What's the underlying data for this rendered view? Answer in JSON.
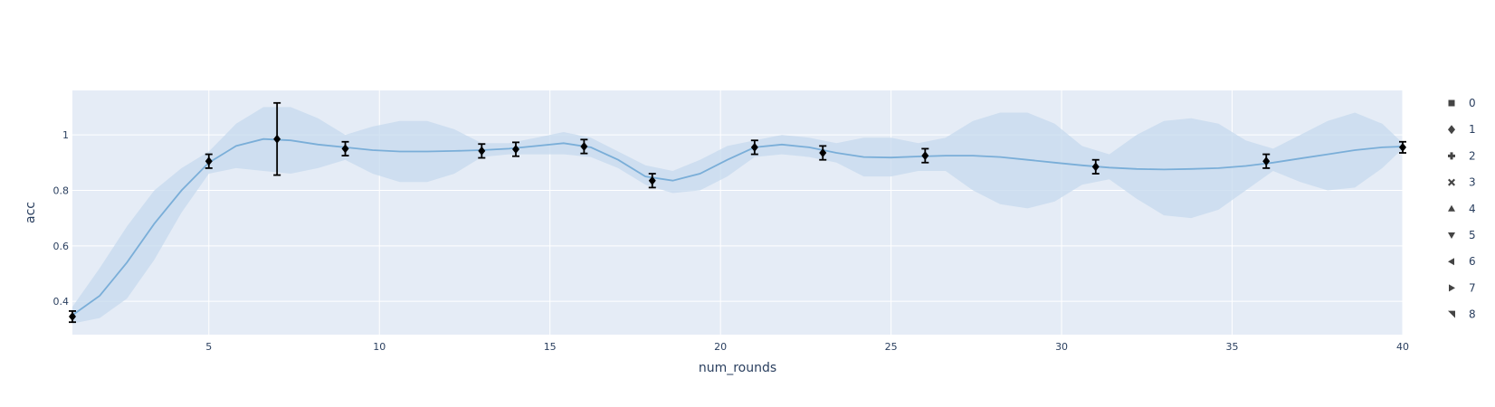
{
  "chart_data": {
    "type": "line",
    "xlabel": "num_rounds",
    "ylabel": "acc",
    "xlim": [
      1,
      40
    ],
    "ylim": [
      0.28,
      1.16
    ],
    "x_ticks": [
      5,
      10,
      15,
      20,
      25,
      30,
      35,
      40
    ],
    "y_ticks": [
      0.4,
      0.6,
      0.8,
      1
    ],
    "grid": true,
    "legend_placement": "right",
    "colors": {
      "plot_bg": "#e5ecf6",
      "grid": "#ffffff",
      "line": "#7aaed8",
      "band": "#c5d9ee",
      "points": "#000000",
      "legend_marker": "#444444",
      "text": "#2a3f5f"
    },
    "fit_line": {
      "x": [
        1,
        1.8,
        2.6,
        3.4,
        4.2,
        5,
        5.8,
        6.6,
        7.4,
        8.2,
        9,
        9.8,
        10.6,
        11.4,
        12.2,
        13,
        13.8,
        14.6,
        15.4,
        16.2,
        17,
        17.8,
        18.6,
        19.4,
        20.2,
        21,
        21.8,
        22.6,
        23.4,
        24.2,
        25,
        25.8,
        26.6,
        27.4,
        28.2,
        29,
        29.8,
        30.6,
        31.4,
        32.2,
        33,
        33.8,
        34.6,
        35.4,
        36.2,
        37,
        37.8,
        38.6,
        39.4,
        40
      ],
      "y": [
        0.35,
        0.42,
        0.54,
        0.68,
        0.8,
        0.9,
        0.96,
        0.985,
        0.98,
        0.965,
        0.955,
        0.945,
        0.94,
        0.94,
        0.942,
        0.945,
        0.95,
        0.96,
        0.97,
        0.955,
        0.91,
        0.85,
        0.835,
        0.86,
        0.91,
        0.955,
        0.965,
        0.955,
        0.935,
        0.92,
        0.918,
        0.922,
        0.925,
        0.925,
        0.92,
        0.91,
        0.9,
        0.89,
        0.882,
        0.877,
        0.875,
        0.877,
        0.88,
        0.888,
        0.9,
        0.915,
        0.93,
        0.945,
        0.955,
        0.958
      ]
    },
    "band": {
      "upper": [
        0.38,
        0.52,
        0.67,
        0.8,
        0.88,
        0.94,
        1.04,
        1.1,
        1.1,
        1.06,
        1.0,
        1.03,
        1.05,
        1.05,
        1.02,
        0.97,
        0.97,
        0.99,
        1.01,
        0.99,
        0.94,
        0.89,
        0.87,
        0.91,
        0.96,
        0.98,
        1.0,
        0.99,
        0.97,
        0.99,
        0.99,
        0.97,
        0.99,
        1.05,
        1.08,
        1.08,
        1.04,
        0.96,
        0.93,
        1.0,
        1.05,
        1.06,
        1.04,
        0.98,
        0.95,
        1.0,
        1.05,
        1.08,
        1.04,
        0.97
      ],
      "lower": [
        0.32,
        0.34,
        0.41,
        0.55,
        0.72,
        0.86,
        0.88,
        0.87,
        0.86,
        0.88,
        0.91,
        0.86,
        0.83,
        0.83,
        0.86,
        0.92,
        0.93,
        0.93,
        0.93,
        0.92,
        0.88,
        0.82,
        0.79,
        0.8,
        0.85,
        0.92,
        0.93,
        0.92,
        0.9,
        0.85,
        0.85,
        0.87,
        0.87,
        0.8,
        0.75,
        0.735,
        0.76,
        0.82,
        0.84,
        0.77,
        0.71,
        0.7,
        0.73,
        0.8,
        0.87,
        0.83,
        0.8,
        0.81,
        0.88,
        0.95
      ]
    },
    "observations": [
      {
        "x": 1,
        "y": 0.345,
        "err": 0.02
      },
      {
        "x": 5,
        "y": 0.905,
        "err": 0.025
      },
      {
        "x": 7,
        "y": 0.985,
        "err": 0.13
      },
      {
        "x": 9,
        "y": 0.95,
        "err": 0.025
      },
      {
        "x": 13,
        "y": 0.942,
        "err": 0.025
      },
      {
        "x": 14,
        "y": 0.948,
        "err": 0.025
      },
      {
        "x": 16,
        "y": 0.958,
        "err": 0.025
      },
      {
        "x": 18,
        "y": 0.835,
        "err": 0.025
      },
      {
        "x": 21,
        "y": 0.955,
        "err": 0.025
      },
      {
        "x": 23,
        "y": 0.935,
        "err": 0.025
      },
      {
        "x": 26,
        "y": 0.925,
        "err": 0.025
      },
      {
        "x": 31,
        "y": 0.885,
        "err": 0.025
      },
      {
        "x": 36,
        "y": 0.905,
        "err": 0.025
      },
      {
        "x": 40,
        "y": 0.955,
        "err": 0.02
      }
    ],
    "legend": [
      {
        "label": "0",
        "symbol": "square"
      },
      {
        "label": "1",
        "symbol": "diamond"
      },
      {
        "label": "2",
        "symbol": "cross"
      },
      {
        "label": "3",
        "symbol": "x"
      },
      {
        "label": "4",
        "symbol": "triangle-up"
      },
      {
        "label": "5",
        "symbol": "triangle-down"
      },
      {
        "label": "6",
        "symbol": "triangle-left"
      },
      {
        "label": "7",
        "symbol": "triangle-right"
      },
      {
        "label": "8",
        "symbol": "triangle-ne"
      }
    ]
  }
}
